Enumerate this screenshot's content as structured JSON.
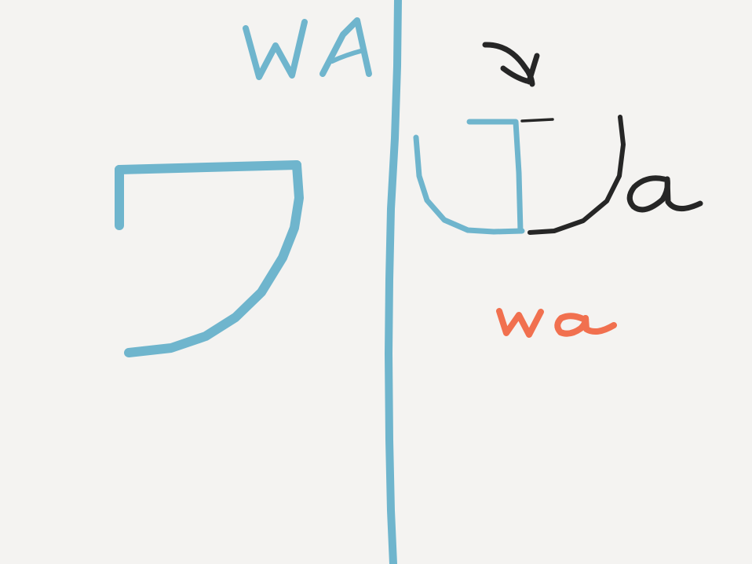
{
  "colors": {
    "background": "#f4f3f1",
    "blue": "#6fb5cd",
    "ink": "#262626",
    "coral": "#f1704f"
  },
  "labels": {
    "top_romaji": "WA",
    "mnemonic_word": "Wa",
    "bottom_romaji": "wa"
  },
  "katakana": {
    "character": "ワ"
  },
  "icons": {
    "arrow": "curved-arrow-icon"
  }
}
